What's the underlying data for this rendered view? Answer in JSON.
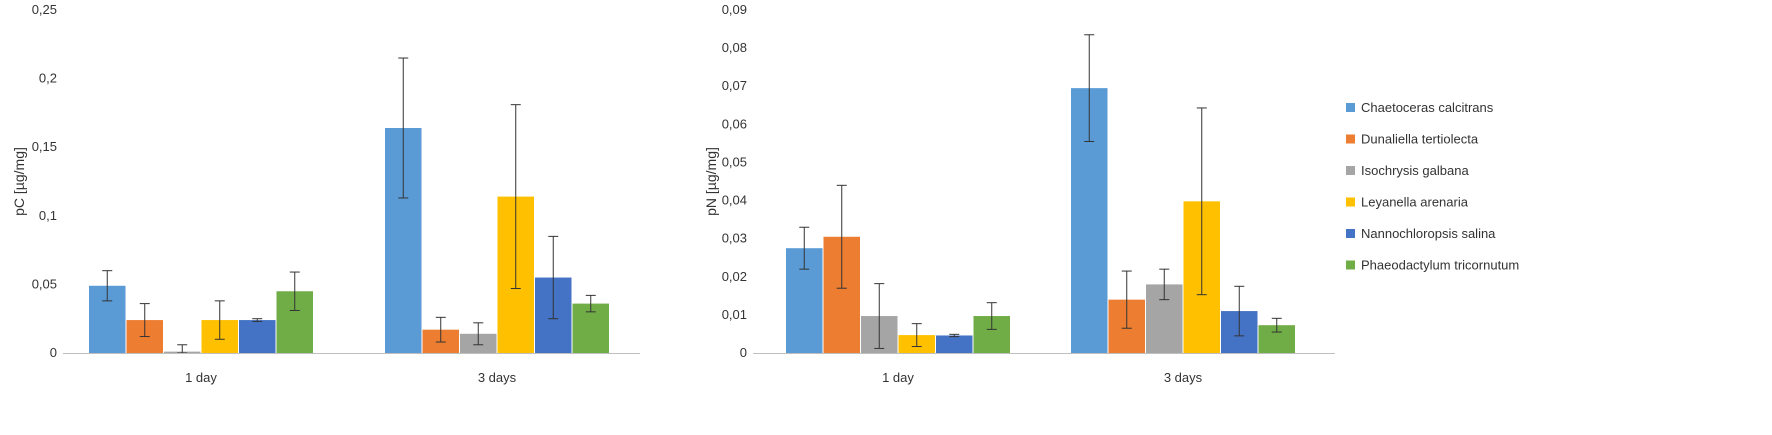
{
  "colors": [
    "#5b9bd5",
    "#ed7d31",
    "#a5a5a5",
    "#ffc000",
    "#4472c4",
    "#70ad47"
  ],
  "legend": {
    "entries": [
      "Chaetoceras calcitrans",
      "Dunaliella tertiolecta",
      "Isochrysis galbana",
      "Leyanella arenaria",
      "Nannochloropsis salina",
      "Phaeodactylum tricornutum"
    ],
    "position": "right"
  },
  "chart_data": [
    {
      "type": "bar",
      "ylabel": "pC [µg/mg]",
      "ylim": [
        0,
        0.25
      ],
      "yticks": [
        "0",
        "0,05",
        "0,1",
        "0,15",
        "0,2",
        "0,25"
      ],
      "categories": [
        "1 day",
        "3 days"
      ],
      "error_bars": true,
      "grid": false,
      "series": [
        {
          "name": "Chaetoceras calcitrans",
          "values": [
            0.049,
            0.164
          ],
          "errors": [
            0.011,
            0.051
          ]
        },
        {
          "name": "Dunaliella tertiolecta",
          "values": [
            0.024,
            0.017
          ],
          "errors": [
            0.012,
            0.009
          ]
        },
        {
          "name": "Isochrysis galbana",
          "values": [
            0.001,
            0.014
          ],
          "errors": [
            0.005,
            0.008
          ]
        },
        {
          "name": "Leyanella arenaria",
          "values": [
            0.024,
            0.114
          ],
          "errors": [
            0.014,
            0.067
          ]
        },
        {
          "name": "Nannochloropsis salina",
          "values": [
            0.024,
            0.055
          ],
          "errors": [
            0.001,
            0.03
          ]
        },
        {
          "name": "Phaeodactylum tricornutum",
          "values": [
            0.045,
            0.036
          ],
          "errors": [
            0.014,
            0.006
          ]
        }
      ]
    },
    {
      "type": "bar",
      "ylabel": "pN [µg/mg]",
      "ylim": [
        0,
        0.09
      ],
      "yticks": [
        "0",
        "0,01",
        "0,02",
        "0,03",
        "0,04",
        "0,05",
        "0,06",
        "0,07",
        "0,08",
        "0,09"
      ],
      "categories": [
        "1 day",
        "3 days"
      ],
      "error_bars": true,
      "grid": false,
      "series": [
        {
          "name": "Chaetoceras calcitrans",
          "values": [
            0.0275,
            0.0695
          ],
          "errors": [
            0.0055,
            0.014
          ]
        },
        {
          "name": "Dunaliella tertiolecta",
          "values": [
            0.0305,
            0.014
          ],
          "errors": [
            0.0135,
            0.0075
          ]
        },
        {
          "name": "Isochrysis galbana",
          "values": [
            0.0097,
            0.018
          ],
          "errors": [
            0.0085,
            0.004
          ]
        },
        {
          "name": "Leyanella arenaria",
          "values": [
            0.0047,
            0.0398
          ],
          "errors": [
            0.003,
            0.0245
          ]
        },
        {
          "name": "Nannochloropsis salina",
          "values": [
            0.0046,
            0.011
          ],
          "errors": [
            0.0003,
            0.0065
          ]
        },
        {
          "name": "Phaeodactylum tricornutum",
          "values": [
            0.0097,
            0.0073
          ],
          "errors": [
            0.0035,
            0.0018
          ]
        }
      ]
    }
  ]
}
